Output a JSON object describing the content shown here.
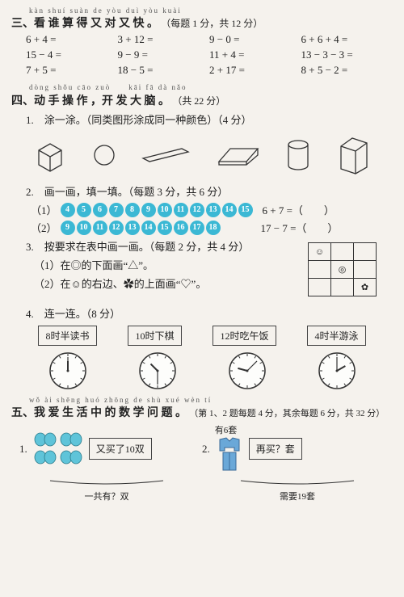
{
  "section3": {
    "pinyin": "kàn shuí suàn de yòu duì yòu kuài",
    "title": "三、看 谁 算 得 又 对 又 快 。",
    "info": "（每题 1 分，共 12 分）",
    "rows": [
      [
        "6 + 4 =",
        "3 + 12 =",
        "9 − 0 =",
        "6 + 6 + 4 ="
      ],
      [
        "15 − 4 =",
        "9 − 9 =",
        "11 + 4 =",
        "13 − 3 − 3 ="
      ],
      [
        "7 + 5 =",
        "18 − 5 =",
        "2 + 17 =",
        "8 + 5 − 2 ="
      ]
    ]
  },
  "section4": {
    "pinyin": "dòng shǒu cāo zuò　　kāi fā dà nǎo",
    "title": "四、动 手 操 作 ，开 发 大 脑 。",
    "info": "（共 22 分）",
    "q1": "1.　涂一涂。（同类图形涂成同一种颜色）（4 分）",
    "q2": {
      "text": "2.　画一画，填一填。（每题 3 分，共 6 分）",
      "line1_label": "（1）",
      "line1_nums": [
        "4",
        "5",
        "6",
        "7",
        "8",
        "9",
        "10",
        "11",
        "12",
        "13",
        "14",
        "15"
      ],
      "line1_exp": "6 + 7 =（　　）",
      "line2_label": "（2）",
      "line2_nums": [
        "9",
        "10",
        "11",
        "12",
        "13",
        "14",
        "15",
        "16",
        "17",
        "18"
      ],
      "line2_exp": "17 − 7 =（　　）"
    },
    "q3": {
      "text": "3.　按要求在表中画一画。（每题 2 分，共 4 分）",
      "a": "（1）在◎的下面画“△”。",
      "b": "（2）在☺的右边、✿的上面画“♡”。"
    },
    "q4": {
      "text": "4.　连一连。（8 分）",
      "boxes": [
        "8时半读书",
        "10时下棋",
        "12时吃午饭",
        "4时半游泳"
      ],
      "clocks": [
        {
          "h": 0,
          "m": 0
        },
        {
          "h": -45,
          "m": 180
        },
        {
          "h": -75,
          "m": 45
        },
        {
          "h": 60,
          "m": 0
        }
      ]
    }
  },
  "section5": {
    "pinyin": "wǒ ài shēng huó zhōng de shù xué wèn tí",
    "title": "五、我 爱 生 活 中 的 数 学 问 题 。",
    "info": "（第 1、2 题每题 4 分，其余每题 6 分，共 32 分）",
    "p1": {
      "num": "1.",
      "box": "又买了10双",
      "brace": "一共有？双"
    },
    "p2": {
      "num": "2.",
      "label": "有6套",
      "box": "再买？套",
      "brace": "需要19套"
    }
  },
  "colors": {
    "circle": "#3bb8d4"
  }
}
